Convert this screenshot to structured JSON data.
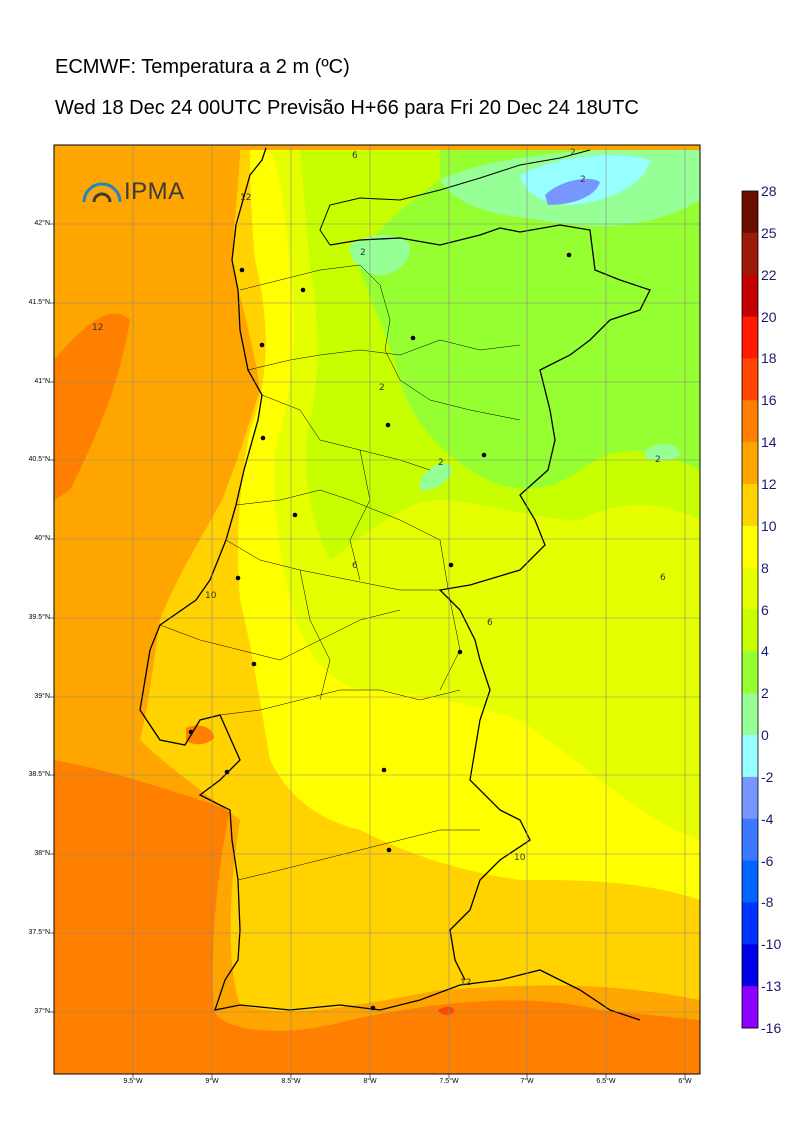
{
  "title_line1": "ECMWF: Temperatura a 2 m (ºC)",
  "title_line2": "Wed 18 Dec 24 00UTC Previsão H+66 para Fri 20 Dec 24 18UTC",
  "logo_text": "IPMA",
  "colorbar": {
    "levels": [
      "28",
      "25",
      "22",
      "20",
      "18",
      "16",
      "14",
      "12",
      "10",
      "8",
      "6",
      "4",
      "2",
      "0",
      "-2",
      "-4",
      "-6",
      "-8",
      "-10",
      "-13",
      "-16"
    ],
    "colors": [
      "#6b0f00",
      "#9c1a0a",
      "#c40000",
      "#ff1a00",
      "#ff4500",
      "#ff7f00",
      "#ffa500",
      "#ffd200",
      "#ffff00",
      "#e6ff00",
      "#c8ff00",
      "#96ff32",
      "#96ff96",
      "#96ffff",
      "#7896ff",
      "#3c78ff",
      "#0064ff",
      "#0032ff",
      "#0000e6",
      "#8c00ff",
      "#e600ff"
    ]
  },
  "axes": {
    "lat_labels": [
      "42°N",
      "41.5°N",
      "41°N",
      "40.5°N",
      "40°N",
      "39.5°N",
      "39°N",
      "38.5°N",
      "38°N",
      "37.5°N",
      "37°N"
    ],
    "lon_labels": [
      "9.5°W",
      "9°W",
      "8.5°W",
      "8°W",
      "7.5°W",
      "7°W",
      "6.5°W",
      "6°W"
    ]
  },
  "contour_labels": [
    "6",
    "2",
    "2",
    "2",
    "12",
    "2",
    "2",
    "2",
    "6",
    "6",
    "10",
    "6",
    "10",
    "12",
    "12"
  ]
}
